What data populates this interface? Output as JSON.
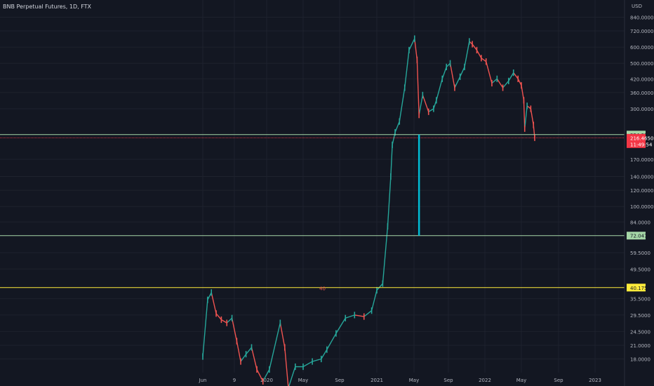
{
  "header": {
    "title": "BNB Perpetual Futures, 1D, FTX",
    "unit": "USD"
  },
  "colors": {
    "background": "#131722",
    "grid": "#1e222d",
    "text": "#b2b5be",
    "up": "#26a69a",
    "down": "#ef5350",
    "level_green": "#a5d6a7",
    "level_yellow": "#ffeb3b",
    "current_price": "#f23645",
    "vertical_marker": "#00bcd4"
  },
  "chart_data": {
    "type": "line",
    "title": "BNB Perpetual Futures, 1D, FTX",
    "y_scale": "log",
    "ylim": [
      16.2,
      950
    ],
    "y_ticks": [
      {
        "value": 840,
        "label": "840.0000"
      },
      {
        "value": 720,
        "label": "720.0000"
      },
      {
        "value": 600,
        "label": "600.0000"
      },
      {
        "value": 500,
        "label": "500.0000"
      },
      {
        "value": 420,
        "label": "420.0000"
      },
      {
        "value": 360,
        "label": "360.0000"
      },
      {
        "value": 300,
        "label": "300.0000"
      },
      {
        "value": 170,
        "label": "170.0000"
      },
      {
        "value": 140,
        "label": "140.0000"
      },
      {
        "value": 120,
        "label": "120.0000"
      },
      {
        "value": 100,
        "label": "100.0000"
      },
      {
        "value": 84,
        "label": "84.0000"
      },
      {
        "value": 59.5,
        "label": "59.5000"
      },
      {
        "value": 49.5,
        "label": "49.5000"
      },
      {
        "value": 35.5,
        "label": "35.5000"
      },
      {
        "value": 29.5,
        "label": "29.5000"
      },
      {
        "value": 24.5,
        "label": "24.5000"
      },
      {
        "value": 21.0,
        "label": "21.0000"
      },
      {
        "value": 18.0,
        "label": "18.0000"
      }
    ],
    "x_ticks": [
      "Jun",
      "9",
      "2020",
      "May",
      "Sep",
      "2021",
      "May",
      "Sep",
      "2022",
      "May",
      "Sep",
      "2023"
    ],
    "x_dates": [
      "2019-06-01",
      "2019-09-01",
      "2020-01-01",
      "2020-05-01",
      "2020-09-01",
      "2021-01-01",
      "2021-05-01",
      "2021-09-01",
      "2022-01-01",
      "2022-05-01",
      "2022-09-01",
      "2023-01-01"
    ],
    "series": [
      {
        "x": [
          "2019-06-01",
          "2019-06-15",
          "2019-06-26",
          "2019-07-10",
          "2019-07-25",
          "2019-08-10",
          "2019-08-25",
          "2019-09-10",
          "2019-09-25",
          "2019-10-15",
          "2019-11-05",
          "2019-11-25",
          "2019-12-18",
          "2020-01-10",
          "2020-02-15",
          "2020-03-01",
          "2020-03-13",
          "2020-04-05",
          "2020-05-01",
          "2020-06-01",
          "2020-07-01",
          "2020-07-20",
          "2020-08-20",
          "2020-09-20",
          "2020-10-20",
          "2020-11-20",
          "2020-12-15",
          "2021-01-01",
          "2021-01-20",
          "2021-02-05",
          "2021-02-15",
          "2021-02-20",
          "2021-03-01",
          "2021-03-15",
          "2021-04-01",
          "2021-04-15",
          "2021-05-03",
          "2021-05-12",
          "2021-05-19",
          "2021-06-01",
          "2021-06-22",
          "2021-07-10",
          "2021-07-20",
          "2021-08-10",
          "2021-08-25",
          "2021-09-07",
          "2021-09-22",
          "2021-10-10",
          "2021-10-25",
          "2021-11-10",
          "2021-11-20",
          "2021-12-05",
          "2021-12-20",
          "2022-01-05",
          "2022-01-24",
          "2022-02-10",
          "2022-03-01",
          "2022-03-20",
          "2022-04-05",
          "2022-04-20",
          "2022-05-01",
          "2022-05-09",
          "2022-05-12",
          "2022-05-20",
          "2022-06-01",
          "2022-06-10",
          "2022-06-14"
        ],
        "values": [
          18.5,
          35.0,
          38.0,
          30.0,
          28.0,
          27.0,
          28.5,
          22.0,
          17.5,
          19.0,
          20.5,
          16.0,
          14.0,
          16.0,
          27.0,
          20.5,
          13.0,
          16.5,
          16.5,
          17.5,
          18.0,
          20.0,
          24.0,
          28.5,
          29.5,
          29.0,
          31.0,
          39.0,
          42.0,
          80.0,
          140.0,
          200.0,
          230.0,
          260.0,
          380.0,
          580.0,
          660.0,
          520.0,
          280.0,
          350.0,
          290.0,
          300.0,
          330.0,
          420.0,
          480.0,
          500.0,
          380.0,
          430.0,
          480.0,
          640.0,
          620.0,
          580.0,
          530.0,
          510.0,
          400.0,
          420.0,
          380.0,
          410.0,
          450.0,
          420.0,
          390.0,
          330.0,
          240.0,
          310.0,
          300.0,
          250.0,
          216.5
        ]
      }
    ],
    "levels": [
      {
        "value": 224.3375,
        "label": "224.3375",
        "kind": "green"
      },
      {
        "value": 72.0475,
        "label": "72.0475",
        "kind": "green"
      },
      {
        "value": 40.175,
        "label": "40.1750",
        "kind": "yellow"
      }
    ],
    "current_price": {
      "value": 216.465,
      "label": "216.4650",
      "countdown": "11:49:54"
    },
    "vertical_marker": {
      "date": "2021-05-19",
      "from": 224.3375,
      "to": 72.0475
    },
    "annotations": [
      {
        "text": "40",
        "date": "2020-07-05",
        "value": 40.0
      }
    ]
  }
}
